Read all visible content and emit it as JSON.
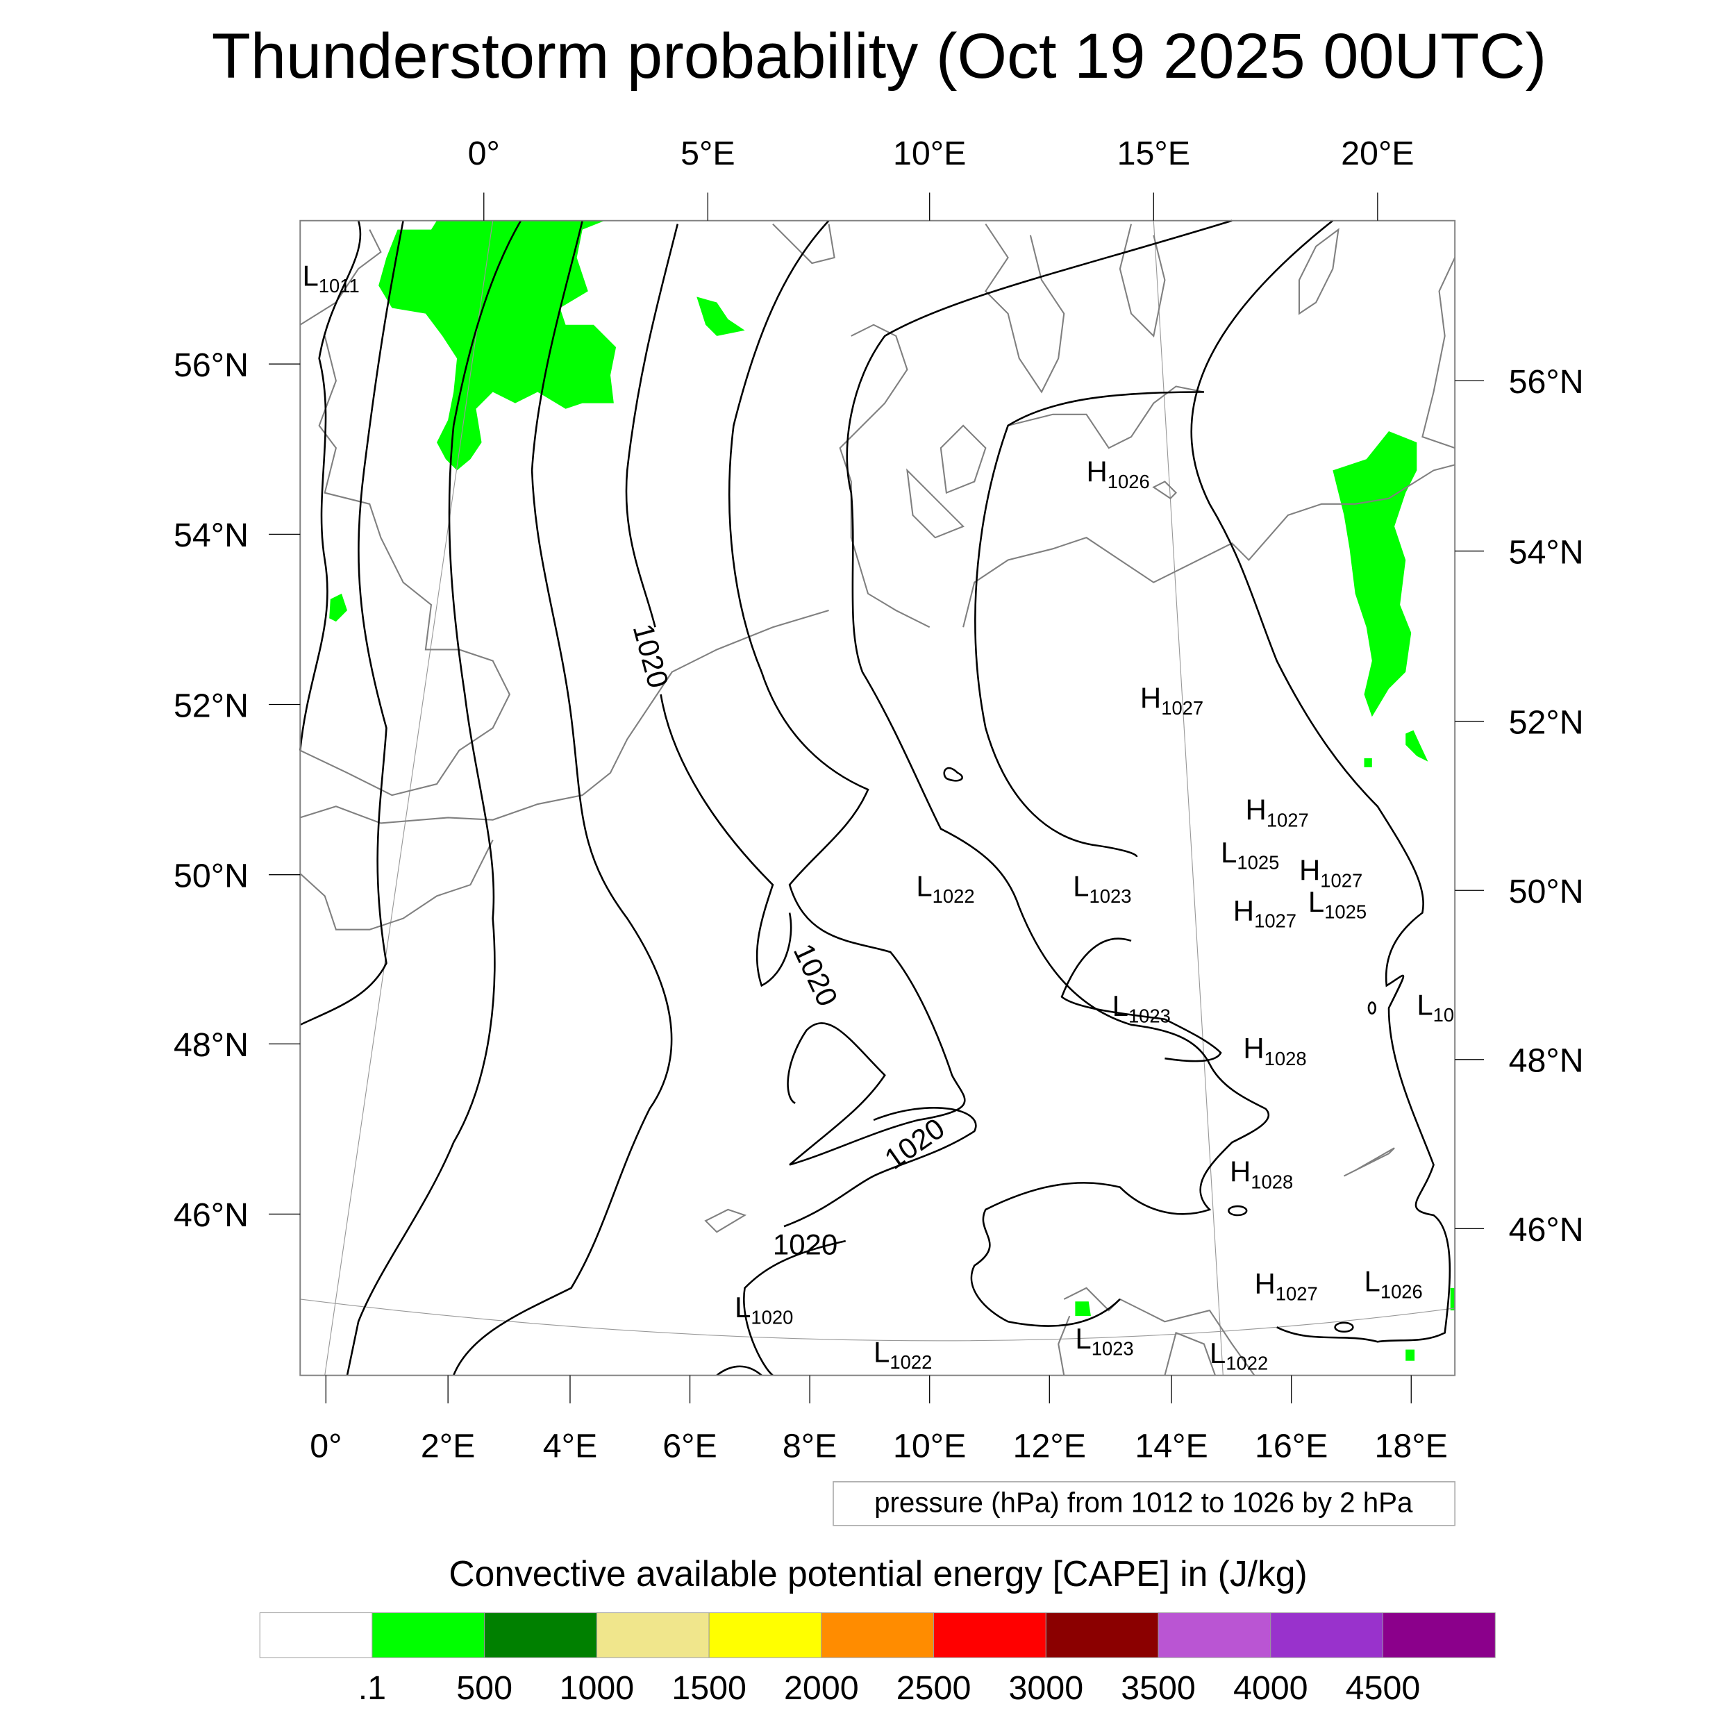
{
  "title": "Thunderstorm probability (Oct 19 2025 00UTC)",
  "pressure_note": "pressure (hPa) from 1012 to 1026 by 2 hPa",
  "colorbar_title": "Convective available potential energy [CAPE] in (J/kg)",
  "chart_data": {
    "type": "contour-map",
    "title": "Thunderstorm probability (Oct 19 2025 00UTC)",
    "top_lon_labels": [
      "0°",
      "5°E",
      "10°E",
      "15°E",
      "20°E"
    ],
    "bottom_lon_labels": [
      "0°",
      "2°E",
      "4°E",
      "6°E",
      "8°E",
      "10°E",
      "12°E",
      "14°E",
      "16°E",
      "18°E"
    ],
    "left_lat_labels": [
      "56°N",
      "54°N",
      "52°N",
      "50°N",
      "48°N",
      "46°N"
    ],
    "right_lat_labels": [
      "56°N",
      "54°N",
      "52°N",
      "50°N",
      "48°N",
      "46°N"
    ],
    "contour_labels": [
      "1020",
      "1020",
      "1020",
      "1020"
    ],
    "pressure_centers": [
      {
        "type": "L",
        "value": "1011"
      },
      {
        "type": "H",
        "value": "1026"
      },
      {
        "type": "H",
        "value": "1027"
      },
      {
        "type": "H",
        "value": "1027"
      },
      {
        "type": "L",
        "value": "1025"
      },
      {
        "type": "H",
        "value": "1027"
      },
      {
        "type": "L",
        "value": "1025"
      },
      {
        "type": "H",
        "value": "1027"
      },
      {
        "type": "L",
        "value": "1022"
      },
      {
        "type": "L",
        "value": "1023"
      },
      {
        "type": "L",
        "value": "1023"
      },
      {
        "type": "L",
        "value": "10"
      },
      {
        "type": "H",
        "value": "1028"
      },
      {
        "type": "H",
        "value": "1028"
      },
      {
        "type": "H",
        "value": "1027"
      },
      {
        "type": "L",
        "value": "1026"
      },
      {
        "type": "L",
        "value": "1020"
      },
      {
        "type": "L",
        "value": "1023"
      },
      {
        "type": "L",
        "value": "1022"
      },
      {
        "type": "L",
        "value": "1022"
      }
    ],
    "colorbar": {
      "labels": [
        ".1",
        "500",
        "1000",
        "1500",
        "2000",
        "2500",
        "3000",
        "3500",
        "4000",
        "4500"
      ],
      "colors": [
        "#ffffff",
        "#00ff00",
        "#008000",
        "#f0e68c",
        "#ffff00",
        "#ff8c00",
        "#ff0000",
        "#8b0000",
        "#ba55d3",
        "#9932cc",
        "#8b008b"
      ]
    },
    "cape_fill_color": "#00ff00"
  }
}
